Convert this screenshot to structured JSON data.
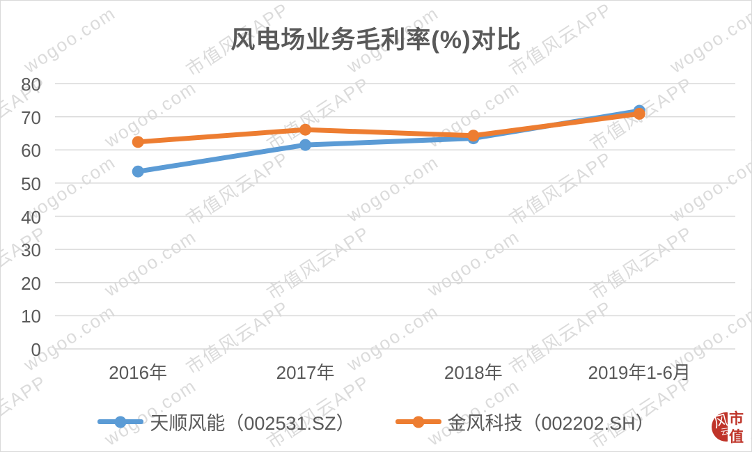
{
  "watermark": {
    "texts": [
      "市值风云APP",
      "wogoo.com"
    ],
    "color": "#DBDBDB"
  },
  "chart_data": {
    "type": "line",
    "title": "风电场业务毛利率(%)对比",
    "categories": [
      "2016年",
      "2017年",
      "2018年",
      "2019年1-6月"
    ],
    "series": [
      {
        "name": "天顺风能（002531.SZ）",
        "color": "#5B9BD5",
        "values": [
          53.5,
          61.5,
          63.5,
          71.8
        ]
      },
      {
        "name": "金风科技（002202.SH）",
        "color": "#ED7D31",
        "values": [
          62.4,
          66.1,
          64.3,
          70.9
        ]
      }
    ],
    "xlabel": "",
    "ylabel": "",
    "ylim": [
      0,
      80
    ],
    "yticks": [
      0,
      10,
      20,
      30,
      40,
      50,
      60,
      70,
      80
    ],
    "grid": true,
    "gridline_color": "#D9D9D9",
    "text_color": "#595959",
    "legend_position": "bottom"
  },
  "seal": {
    "circle_char": "风",
    "circle_mark": "云",
    "side_top": "市",
    "side_bottom": "值",
    "color": "#BF3429"
  }
}
